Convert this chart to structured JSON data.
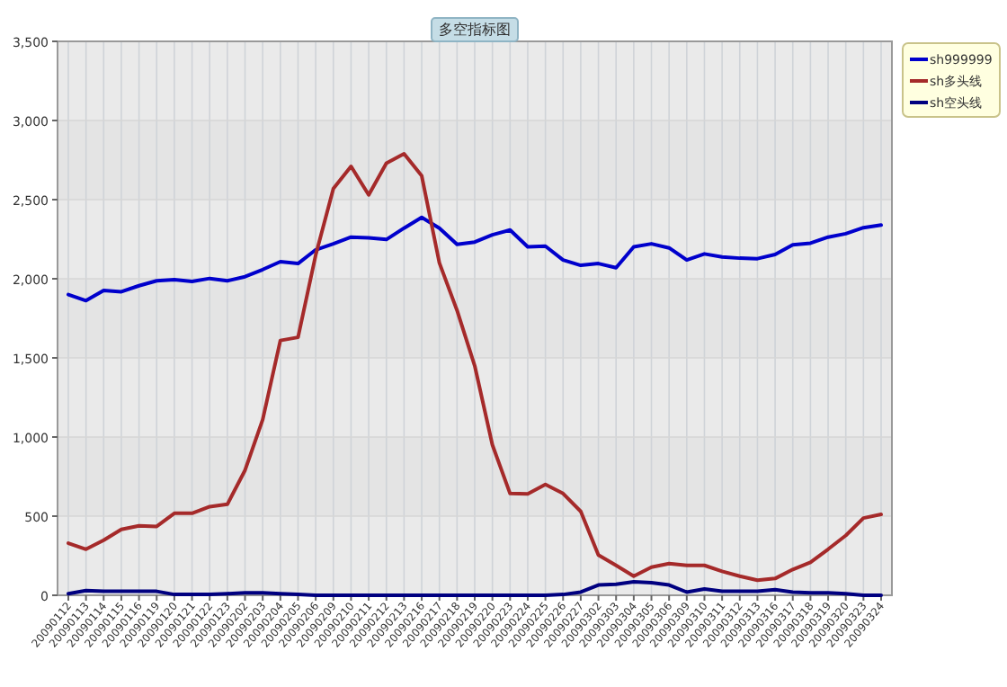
{
  "chart_data": {
    "type": "line",
    "title": "多空指标图",
    "categories": [
      "20090112",
      "20090113",
      "20090114",
      "20090115",
      "20090116",
      "20090119",
      "20090120",
      "20090121",
      "20090122",
      "20090123",
      "20090202",
      "20090203",
      "20090204",
      "20090205",
      "20090206",
      "20090209",
      "20090210",
      "20090211",
      "20090212",
      "20090213",
      "20090216",
      "20090217",
      "20090218",
      "20090219",
      "20090220",
      "20090223",
      "20090224",
      "20090225",
      "20090226",
      "20090227",
      "20090302",
      "20090303",
      "20090304",
      "20090305",
      "20090306",
      "20090309",
      "20090310",
      "20090311",
      "20090312",
      "20090313",
      "20090316",
      "20090317",
      "20090318",
      "20090319",
      "20090320",
      "20090323",
      "20090324"
    ],
    "series": [
      {
        "name": "sh999999",
        "color": "#0000cc",
        "values": [
          1900,
          1862,
          1926,
          1918,
          1956,
          1987,
          1994,
          1983,
          2002,
          1987,
          2013,
          2058,
          2108,
          2096,
          2183,
          2221,
          2263,
          2259,
          2248,
          2320,
          2388,
          2320,
          2217,
          2232,
          2278,
          2308,
          2202,
          2206,
          2119,
          2085,
          2096,
          2070,
          2202,
          2221,
          2195,
          2119,
          2157,
          2138,
          2130,
          2127,
          2153,
          2214,
          2225,
          2263,
          2285,
          2323,
          2339
        ]
      },
      {
        "name": "sh多头线",
        "color": "#a52a2a",
        "values": [
          329,
          291,
          348,
          416,
          439,
          435,
          518,
          518,
          560,
          575,
          790,
          1110,
          1610,
          1630,
          2150,
          2570,
          2710,
          2530,
          2730,
          2790,
          2650,
          2100,
          1800,
          1450,
          950,
          643,
          640,
          700,
          643,
          530,
          254,
          189,
          121,
          178,
          200,
          189,
          189,
          151,
          121,
          95,
          106,
          163,
          208,
          291,
          378,
          488,
          511
        ]
      },
      {
        "name": "sh空头线",
        "color": "#000080",
        "values": [
          10,
          30,
          25,
          25,
          25,
          25,
          5,
          5,
          5,
          10,
          15,
          15,
          10,
          5,
          0,
          0,
          0,
          0,
          0,
          0,
          0,
          0,
          0,
          0,
          0,
          0,
          0,
          0,
          5,
          20,
          65,
          70,
          85,
          80,
          65,
          20,
          40,
          25,
          25,
          25,
          35,
          20,
          15,
          15,
          10,
          0,
          0
        ]
      }
    ],
    "ylim": [
      0,
      3500
    ],
    "yticks": [
      0,
      500,
      {
        "value": 1000,
        "label": "1,000"
      },
      {
        "value": 1500,
        "label": "1,500"
      },
      {
        "value": 2000,
        "label": "2,000"
      },
      {
        "value": 2500,
        "label": "2,500"
      },
      {
        "value": 3000,
        "label": "3,000"
      },
      {
        "value": 3500,
        "label": "3,500"
      }
    ],
    "grid": true,
    "legend": "top right",
    "marker": "none",
    "line_style": "solid"
  }
}
